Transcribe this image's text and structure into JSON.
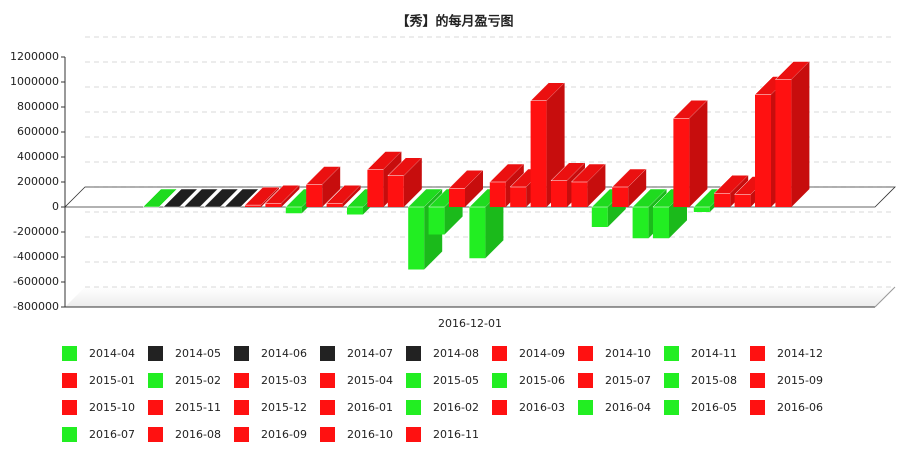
{
  "chart_data": {
    "type": "bar3d",
    "title": "【秀】的每月盈亏图",
    "categories": [
      "2016-12-01"
    ],
    "ylim": [
      -800000,
      1200000
    ],
    "yticks": [
      -800000,
      -600000,
      -400000,
      -200000,
      0,
      200000,
      400000,
      600000,
      800000,
      1000000,
      1200000
    ],
    "grid": true,
    "series": [
      {
        "name": "2014-04",
        "color": "#22ee22",
        "values": [
          0
        ]
      },
      {
        "name": "2014-05",
        "color": "#222222",
        "values": [
          0
        ]
      },
      {
        "name": "2014-06",
        "color": "#222222",
        "values": [
          0
        ]
      },
      {
        "name": "2014-07",
        "color": "#222222",
        "values": [
          0
        ]
      },
      {
        "name": "2014-08",
        "color": "#222222",
        "values": [
          0
        ]
      },
      {
        "name": "2014-09",
        "color": "#ff1111",
        "values": [
          15000
        ]
      },
      {
        "name": "2014-10",
        "color": "#ff1111",
        "values": [
          30000
        ]
      },
      {
        "name": "2014-11",
        "color": "#22ee22",
        "values": [
          -50000
        ]
      },
      {
        "name": "2014-12",
        "color": "#ff1111",
        "values": [
          180000
        ]
      },
      {
        "name": "2015-01",
        "color": "#ff1111",
        "values": [
          30000
        ]
      },
      {
        "name": "2015-02",
        "color": "#22ee22",
        "values": [
          -60000
        ]
      },
      {
        "name": "2015-03",
        "color": "#ff1111",
        "values": [
          300000
        ]
      },
      {
        "name": "2015-04",
        "color": "#ff1111",
        "values": [
          250000
        ]
      },
      {
        "name": "2015-05",
        "color": "#22ee22",
        "values": [
          -500000
        ]
      },
      {
        "name": "2015-06",
        "color": "#22ee22",
        "values": [
          -220000
        ]
      },
      {
        "name": "2015-07",
        "color": "#ff1111",
        "values": [
          150000
        ]
      },
      {
        "name": "2015-08",
        "color": "#22ee22",
        "values": [
          -410000
        ]
      },
      {
        "name": "2015-09",
        "color": "#ff1111",
        "values": [
          200000
        ]
      },
      {
        "name": "2015-10",
        "color": "#ff1111",
        "values": [
          160000
        ]
      },
      {
        "name": "2015-11",
        "color": "#ff1111",
        "values": [
          850000
        ]
      },
      {
        "name": "2015-12",
        "color": "#ff1111",
        "values": [
          210000
        ]
      },
      {
        "name": "2016-01",
        "color": "#ff1111",
        "values": [
          200000
        ]
      },
      {
        "name": "2016-02",
        "color": "#22ee22",
        "values": [
          -160000
        ]
      },
      {
        "name": "2016-03",
        "color": "#ff1111",
        "values": [
          160000
        ]
      },
      {
        "name": "2016-04",
        "color": "#22ee22",
        "values": [
          -250000
        ]
      },
      {
        "name": "2016-05",
        "color": "#22ee22",
        "values": [
          -250000
        ]
      },
      {
        "name": "2016-06",
        "color": "#ff1111",
        "values": [
          710000
        ]
      },
      {
        "name": "2016-07",
        "color": "#22ee22",
        "values": [
          -40000
        ]
      },
      {
        "name": "2016-08",
        "color": "#ff1111",
        "values": [
          110000
        ]
      },
      {
        "name": "2016-09",
        "color": "#ff1111",
        "values": [
          100000
        ]
      },
      {
        "name": "2016-10",
        "color": "#ff1111",
        "values": [
          900000
        ]
      },
      {
        "name": "2016-11",
        "color": "#ff1111",
        "values": [
          1020000
        ]
      }
    ]
  }
}
